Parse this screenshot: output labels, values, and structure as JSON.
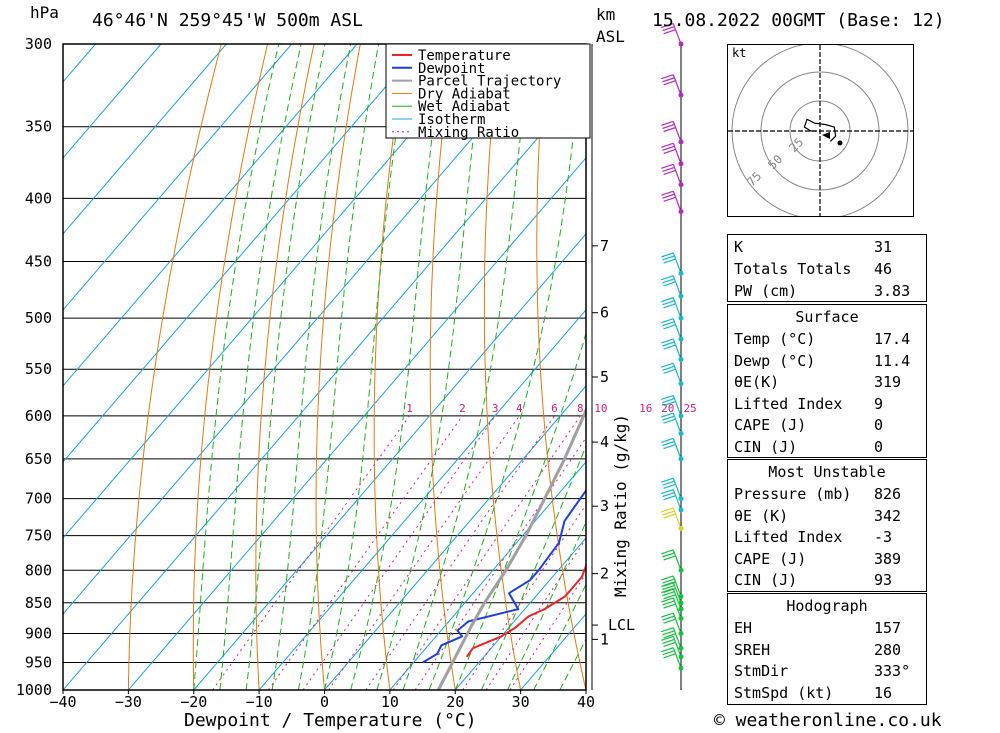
{
  "header": {
    "pressure_unit": "hPa",
    "location": "46°46'N  259°45'W  500m  ASL",
    "km_label": "km",
    "asl_label": "ASL",
    "datetime": "15.08.2022  00GMT  (Base: 12)"
  },
  "footer": {
    "copyright": "© weatheronline.co.uk"
  },
  "colors": {
    "temperature": "#e8262a",
    "dewpoint": "#1f3fd6",
    "parcel": "#a0a0a0",
    "dry_adiabat": "#e07a18",
    "wet_adiabat": "#1fae1f",
    "isotherm": "#1f9fe0",
    "mixing_ratio": "#d0208a"
  },
  "chart_data": {
    "type": "line",
    "chart_kind": "skew-T log-P sounding",
    "xlabel": "Dewpoint / Temperature (°C)",
    "ylabel": "hPa",
    "mixing_ratio_axis_label": "Mixing Ratio (g/kg)",
    "y_scale": "log",
    "xlim": [
      -40,
      40
    ],
    "ylim": [
      1000,
      300
    ],
    "x_ticks": [
      -40,
      -30,
      -20,
      -10,
      0,
      10,
      20,
      30,
      40
    ],
    "pressure_levels": [
      300,
      350,
      400,
      450,
      500,
      550,
      600,
      650,
      700,
      750,
      800,
      850,
      900,
      950,
      1000
    ],
    "height_km_ticks": [
      {
        "label": "1",
        "p": 910
      },
      {
        "label": "2",
        "p": 805
      },
      {
        "label": "3",
        "p": 710
      },
      {
        "label": "4",
        "p": 630
      },
      {
        "label": "5",
        "p": 558
      },
      {
        "label": "6",
        "p": 495
      },
      {
        "label": "7",
        "p": 437
      }
    ],
    "lcl": {
      "label": "LCL",
      "p": 886
    },
    "mixing_ratio_labels": [
      "1",
      "2",
      "3",
      "4",
      "6",
      "8",
      "10",
      "16",
      "20",
      "25"
    ],
    "mixing_ratio_values": [
      1,
      2,
      3,
      4,
      6,
      8,
      10,
      16,
      20,
      25
    ],
    "legend": [
      "Temperature",
      "Dewpoint",
      "Parcel Trajectory",
      "Dry Adiabat",
      "Wet Adiabat",
      "Isotherm",
      "Mixing Ratio"
    ],
    "legend_position": "top-center",
    "series": [
      {
        "name": "Temperature",
        "points": [
          [
            940,
            17.4
          ],
          [
            925,
            17.2
          ],
          [
            905,
            20
          ],
          [
            890,
            21
          ],
          [
            872,
            21.5
          ],
          [
            860,
            23
          ],
          [
            840,
            24.5
          ],
          [
            810,
            24.5
          ],
          [
            780,
            23
          ],
          [
            750,
            22
          ],
          [
            710,
            20.5
          ],
          [
            690,
            19.3
          ],
          [
            650,
            17.2
          ],
          [
            600,
            14.5
          ],
          [
            550,
            11
          ],
          [
            500,
            7
          ],
          [
            470,
            3.5
          ],
          [
            450,
            2
          ],
          [
            400,
            -3.5
          ],
          [
            350,
            -10
          ],
          [
            300,
            -18
          ]
        ]
      },
      {
        "name": "Dewpoint",
        "points": [
          [
            950,
            11.4
          ],
          [
            935,
            12.5
          ],
          [
            920,
            12
          ],
          [
            905,
            14
          ],
          [
            895,
            12.5
          ],
          [
            880,
            13
          ],
          [
            860,
            19
          ],
          [
            835,
            15.5
          ],
          [
            815,
            17
          ],
          [
            800,
            17
          ],
          [
            760,
            16.5
          ],
          [
            730,
            14.5
          ],
          [
            650,
            13
          ],
          [
            625,
            10.5
          ],
          [
            600,
            9.8
          ],
          [
            560,
            9.5
          ],
          [
            520,
            10
          ],
          [
            505,
            9.3
          ],
          [
            485,
            8
          ],
          [
            450,
            8
          ],
          [
            400,
            3
          ],
          [
            350,
            -3
          ],
          [
            300,
            -10
          ]
        ]
      },
      {
        "name": "Parcel Trajectory",
        "points": [
          [
            1000,
            17.4
          ],
          [
            886,
            14
          ],
          [
            850,
            13
          ],
          [
            800,
            12
          ],
          [
            750,
            10.5
          ],
          [
            700,
            8.5
          ],
          [
            650,
            6.3
          ],
          [
            600,
            3.6
          ],
          [
            550,
            0.3
          ],
          [
            500,
            -3.8
          ],
          [
            450,
            -9
          ],
          [
            400,
            -15
          ],
          [
            350,
            -22
          ],
          [
            300,
            -31
          ]
        ]
      }
    ],
    "hodograph": {
      "unit_label": "kt",
      "ring_labels": [
        "25",
        "50",
        "75"
      ],
      "points_kt": [
        [
          8,
          -8
        ],
        [
          12,
          -4
        ],
        [
          11,
          3
        ],
        [
          4,
          5
        ],
        [
          -4,
          6
        ],
        [
          -10,
          9
        ],
        [
          -12,
          3
        ],
        [
          -7,
          0
        ],
        [
          -3,
          0
        ]
      ]
    },
    "wind_barbs": [
      {
        "p": 300
      },
      {
        "p": 330
      },
      {
        "p": 360
      },
      {
        "p": 375
      },
      {
        "p": 390
      },
      {
        "p": 410
      },
      {
        "p": 460
      },
      {
        "p": 480
      },
      {
        "p": 500
      },
      {
        "p": 520
      },
      {
        "p": 540
      },
      {
        "p": 565
      },
      {
        "p": 600
      },
      {
        "p": 620
      },
      {
        "p": 650
      },
      {
        "p": 700
      },
      {
        "p": 715
      },
      {
        "p": 740
      },
      {
        "p": 800
      },
      {
        "p": 840
      },
      {
        "p": 850
      },
      {
        "p": 860
      },
      {
        "p": 875
      },
      {
        "p": 900
      },
      {
        "p": 925
      },
      {
        "p": 940
      },
      {
        "p": 960
      }
    ]
  },
  "indices": {
    "top": [
      {
        "label": "K",
        "value": "31"
      },
      {
        "label": "Totals Totals",
        "value": "46"
      },
      {
        "label": "PW (cm)",
        "value": "3.83"
      }
    ],
    "surface": {
      "title": "Surface",
      "rows": [
        {
          "label": "Temp (°C)",
          "value": "17.4"
        },
        {
          "label": "Dewp (°C)",
          "value": "11.4"
        },
        {
          "label": "θE(K)",
          "value": "319"
        },
        {
          "label": "Lifted Index",
          "value": "9"
        },
        {
          "label": "CAPE (J)",
          "value": "0"
        },
        {
          "label": "CIN (J)",
          "value": "0"
        }
      ]
    },
    "most_unstable": {
      "title": "Most Unstable",
      "rows": [
        {
          "label": "Pressure (mb)",
          "value": "826"
        },
        {
          "label": "θE (K)",
          "value": "342"
        },
        {
          "label": "Lifted Index",
          "value": "-3"
        },
        {
          "label": "CAPE (J)",
          "value": "389"
        },
        {
          "label": "CIN (J)",
          "value": "93"
        }
      ]
    },
    "hodograph": {
      "title": "Hodograph",
      "rows": [
        {
          "label": "EH",
          "value": "157"
        },
        {
          "label": "SREH",
          "value": "280"
        },
        {
          "label": "StmDir",
          "value": "333°"
        },
        {
          "label": "StmSpd (kt)",
          "value": "16"
        }
      ]
    }
  }
}
